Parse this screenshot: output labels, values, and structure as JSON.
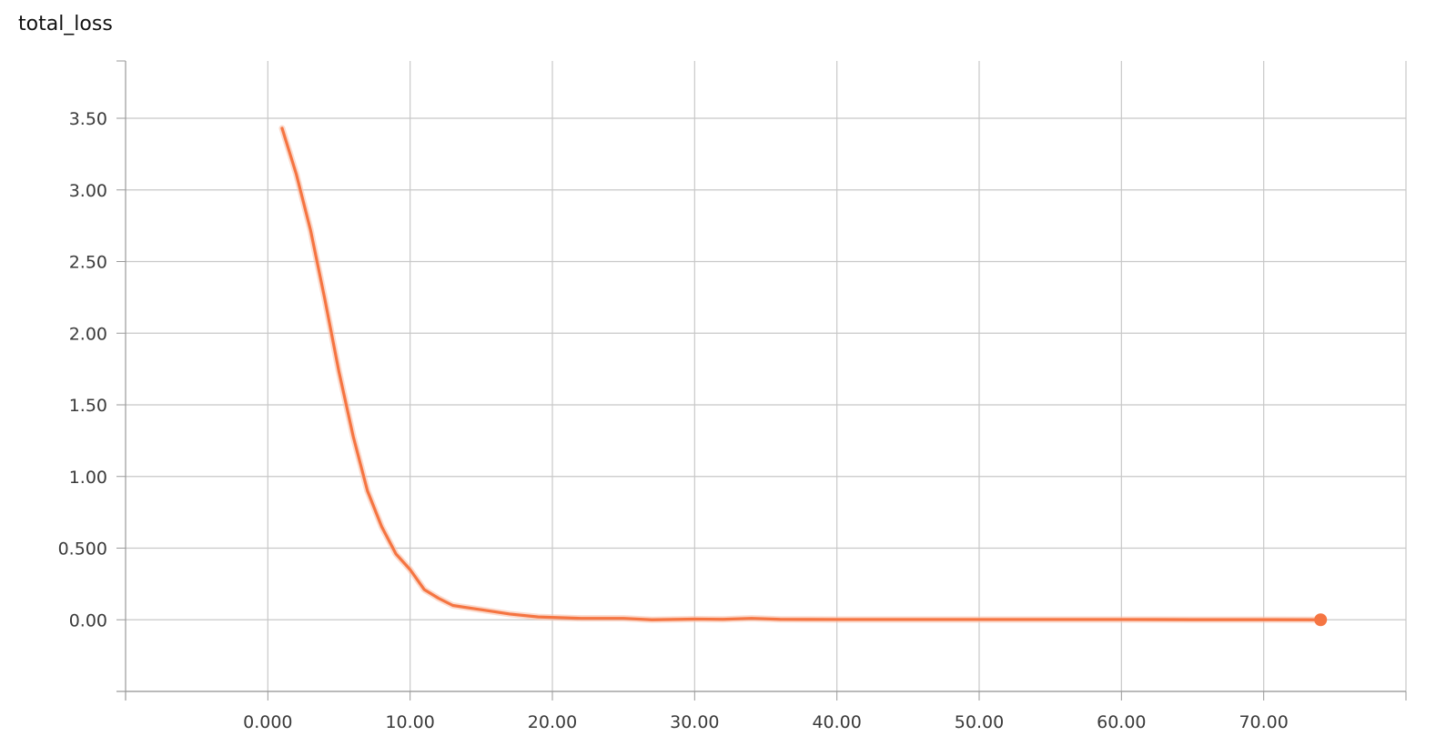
{
  "chart_data": {
    "type": "line",
    "title": "total_loss",
    "xlabel": "",
    "ylabel": "",
    "xlim": [
      -10,
      80
    ],
    "ylim": [
      -0.5,
      3.9
    ],
    "x_ticks": [
      0,
      10,
      20,
      30,
      40,
      50,
      60,
      70
    ],
    "x_tick_labels": [
      "0.000",
      "10.00",
      "20.00",
      "30.00",
      "40.00",
      "50.00",
      "60.00",
      "70.00"
    ],
    "y_ticks": [
      0,
      0.5,
      1,
      1.5,
      2,
      2.5,
      3,
      3.5
    ],
    "y_tick_labels": [
      "0.00",
      "0.500",
      "1.00",
      "1.50",
      "2.00",
      "2.50",
      "3.00",
      "3.50"
    ],
    "grid": true,
    "legend": "none",
    "colors": {
      "line": "#f57542",
      "smoothed_shadow": "#f9c3ad",
      "grid": "#c8c8c8",
      "axis": "#9a9a9a"
    },
    "series": [
      {
        "x": [
          1,
          2,
          3,
          4,
          5,
          6,
          7,
          8,
          9,
          10,
          11,
          12,
          13,
          15,
          17,
          19,
          22,
          25,
          27,
          30,
          32,
          34,
          36,
          40,
          45,
          50,
          55,
          60,
          65,
          70,
          74
        ],
        "values": [
          3.43,
          3.11,
          2.72,
          2.24,
          1.73,
          1.28,
          0.9,
          0.65,
          0.46,
          0.35,
          0.21,
          0.15,
          0.1,
          0.07,
          0.04,
          0.02,
          0.01,
          0.01,
          0.0,
          0.005,
          0.003,
          0.01,
          0.003,
          0.002,
          0.002,
          0.002,
          0.002,
          0.002,
          0.001,
          0.001,
          0.0
        ]
      }
    ]
  }
}
